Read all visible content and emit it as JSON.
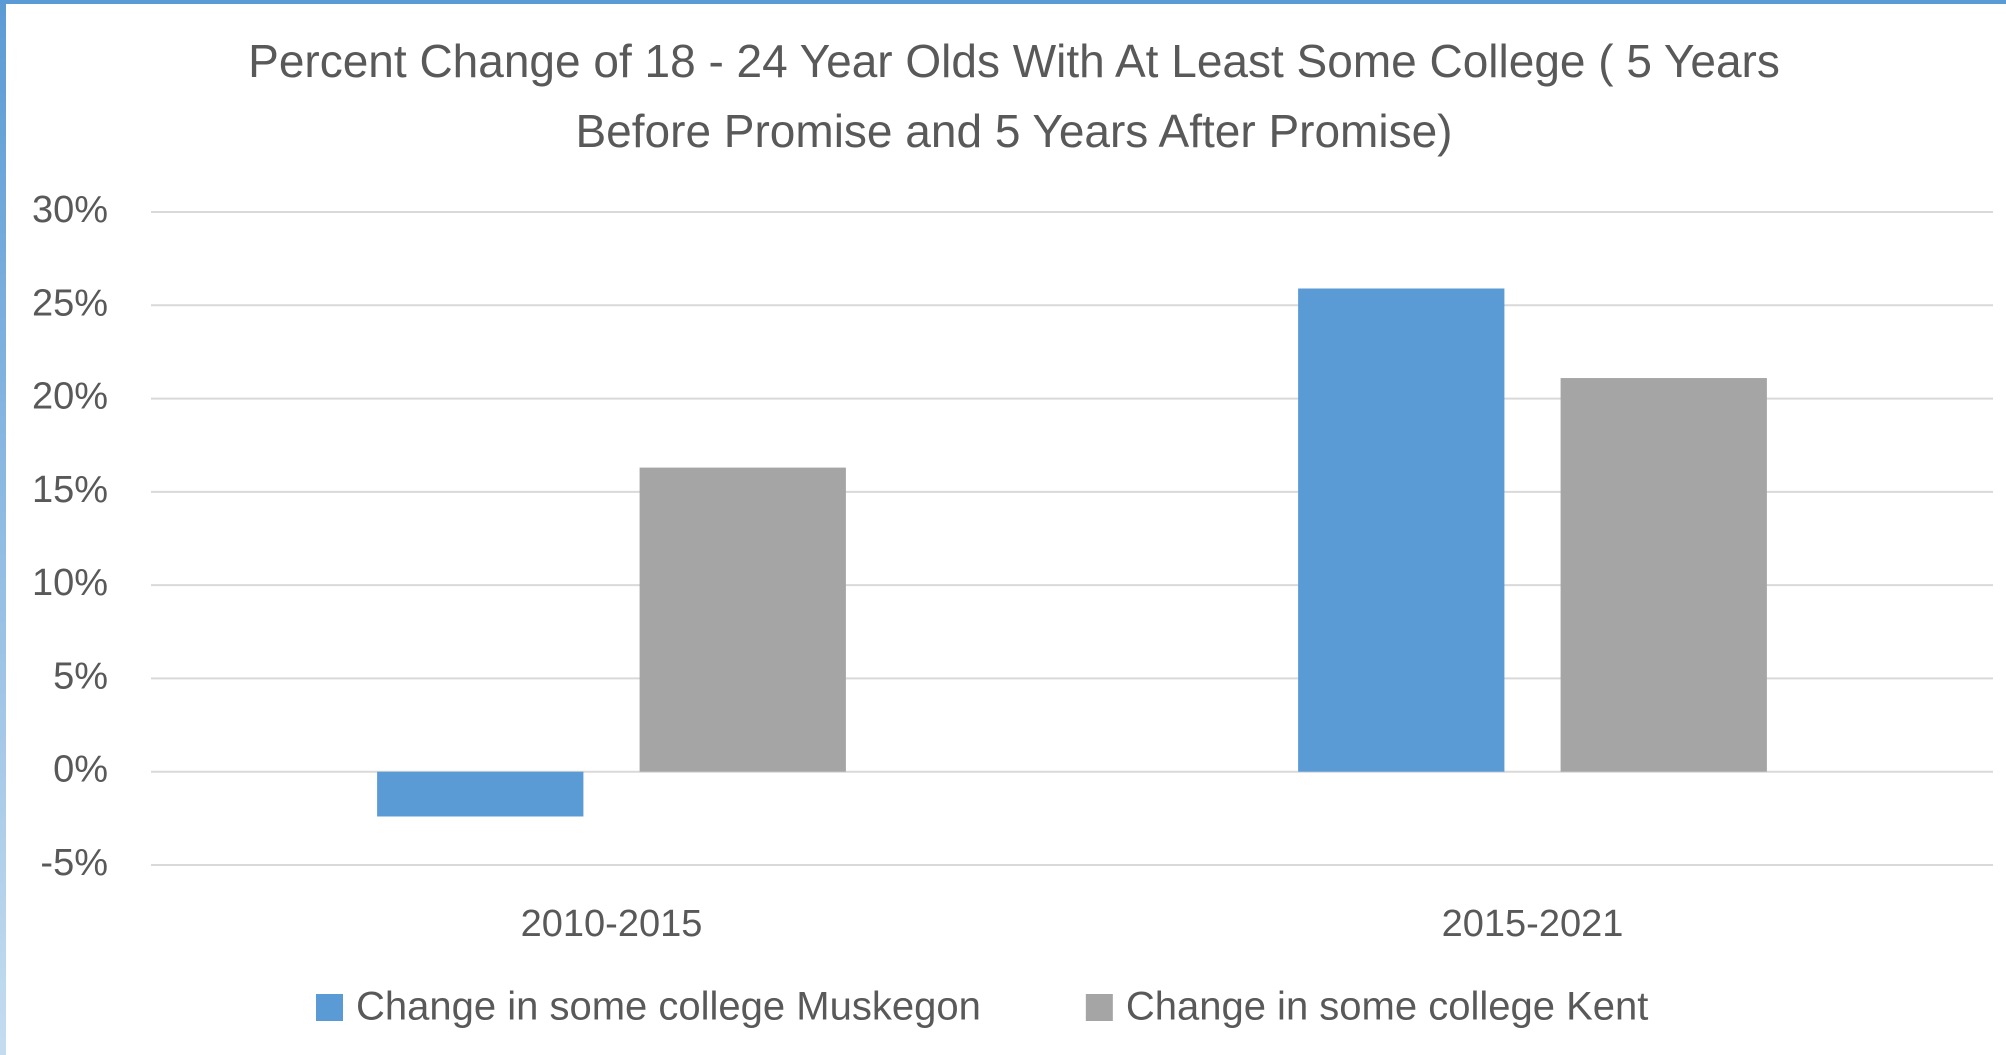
{
  "chart_data": {
    "type": "bar",
    "title": "Percent Change of 18 - 24 Year Olds With At Least Some College ( 5 Years Before Promise and 5 Years After Promise)",
    "categories": [
      "2010-2015",
      "2015-2021"
    ],
    "series": [
      {
        "name": "Change in some college Muskegon",
        "color": "#5b9bd5",
        "values": [
          -2.4,
          25.9
        ]
      },
      {
        "name": "Change in some college Kent",
        "color": "#a5a5a5",
        "values": [
          16.3,
          21.1
        ]
      }
    ],
    "ylim": [
      -5,
      30
    ],
    "yticks": [
      {
        "value": -5,
        "label": "-5%"
      },
      {
        "value": 0,
        "label": "0%"
      },
      {
        "value": 5,
        "label": "5%"
      },
      {
        "value": 10,
        "label": "10%"
      },
      {
        "value": 15,
        "label": "15%"
      },
      {
        "value": 20,
        "label": "20%"
      },
      {
        "value": 25,
        "label": "25%"
      },
      {
        "value": 30,
        "label": "30%"
      }
    ],
    "grid": true,
    "legend": "bottom"
  }
}
